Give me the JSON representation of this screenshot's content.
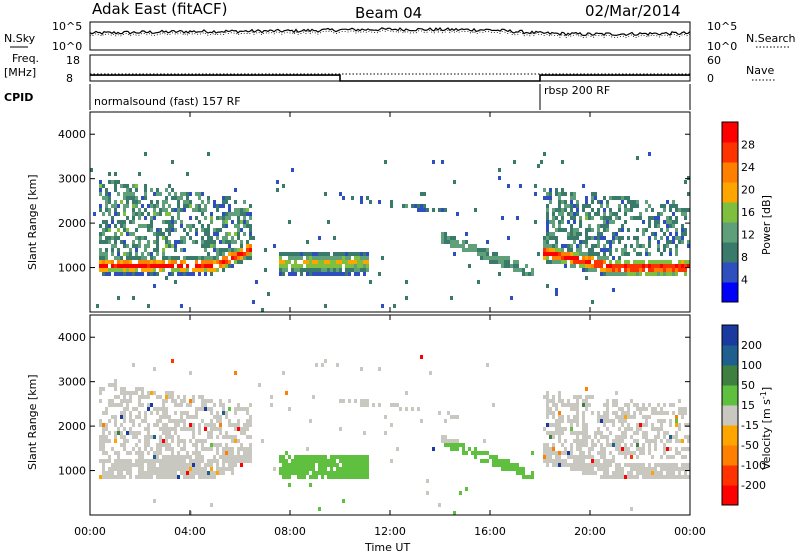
{
  "header": {
    "title": "Adak East (fitACF)",
    "beam": "Beam 04",
    "date": "02/Mar/2014"
  },
  "panels": {
    "nsky_label": "N.Sky",
    "nsearch_label": "N.Search",
    "freq_label": "Freq.",
    "freq_unit": "[MHz]",
    "nave_label": "Nave",
    "cpid_label": "CPID",
    "cpid_1": "normalsound (fast) 157 RF",
    "cpid_2": "rbsp 200 RF",
    "nsky_ticks": [
      "10^5",
      "10^0"
    ],
    "nsearch_ticks": [
      "10^5",
      "10^0"
    ],
    "freq_ticks": [
      "18",
      "8"
    ],
    "nave_ticks": [
      "60",
      "0"
    ]
  },
  "colors": {
    "power_scale": [
      "#0000ff",
      "#2f4fbf",
      "#3a7a6a",
      "#5f9f7a",
      "#7fbf3f",
      "#ffa500",
      "#ff7f00",
      "#ff3300",
      "#ff0000"
    ],
    "velocity_scale": [
      "#1a3aa0",
      "#1f5f8f",
      "#3f7f3f",
      "#5fbf3f",
      "#c8c8c0",
      "#ffa500",
      "#ff7f00",
      "#ff3300",
      "#ff0000"
    ]
  },
  "chart_data": [
    {
      "type": "line",
      "name": "N.Sky / N.Search",
      "x": [
        "00:00",
        "04:00",
        "08:00",
        "10:00",
        "12:00",
        "16:00",
        "18:00",
        "20:00",
        "24:00"
      ],
      "y_log10": [
        3.0,
        3.3,
        3.4,
        3.6,
        3.7,
        3.6,
        3.0,
        2.8,
        3.0
      ]
    },
    {
      "type": "line",
      "name": "Freq. / Nave",
      "x": [
        "00:00",
        "10:00",
        "18:00",
        "24:00"
      ],
      "freq_mhz": [
        10.3,
        10.3,
        8.0,
        10.3
      ],
      "ylim_freq": [
        8,
        18
      ],
      "ylim_nave": [
        0,
        60
      ]
    },
    {
      "type": "heatmap",
      "title": "Power",
      "xlabel": "Time UT",
      "ylabel": "Slant Range [km]",
      "x_ticks": [
        "00:00",
        "04:00",
        "08:00",
        "12:00",
        "16:00",
        "20:00",
        "00:00"
      ],
      "y_ticks": [
        "1000",
        "2000",
        "3000",
        "4000"
      ],
      "ylim": [
        0,
        4500
      ],
      "colorbar_label": "Power [dB]",
      "colorbar_ticks": [
        "4",
        "8",
        "12",
        "16",
        "20",
        "24",
        "28"
      ]
    },
    {
      "type": "heatmap",
      "title": "Velocity",
      "xlabel": "Time UT",
      "ylabel": "Slant Range [km]",
      "x_ticks": [
        "00:00",
        "04:00",
        "08:00",
        "12:00",
        "16:00",
        "20:00",
        "00:00"
      ],
      "y_ticks": [
        "1000",
        "2000",
        "3000",
        "4000"
      ],
      "ylim": [
        0,
        4500
      ],
      "colorbar_label": "Velocity [m s",
      "colorbar_label_sup": "-1",
      "colorbar_label_end": "]",
      "colorbar_ticks": [
        "200",
        "100",
        "50",
        "15",
        "-15",
        "-50",
        "-100",
        "-200"
      ]
    }
  ],
  "x_axis": {
    "label": "Time UT"
  }
}
